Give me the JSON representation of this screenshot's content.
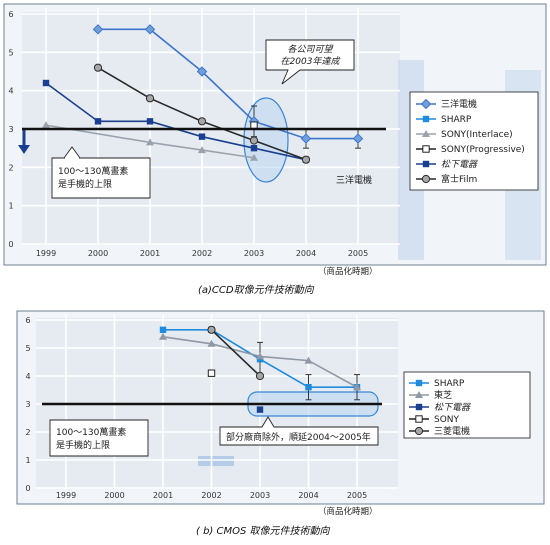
{
  "chart_data": [
    {
      "type": "line",
      "xlabel": "（商品化時期）",
      "caption": "(a)CCD取像元件技術動向",
      "x": [
        "1999",
        "2000",
        "2001",
        "2002",
        "2003",
        "2004",
        "2005"
      ],
      "yticks": [
        "0",
        "1",
        "2",
        "3",
        "4",
        "5",
        "6"
      ],
      "ylim": [
        0,
        6
      ],
      "threshold": 3,
      "threshold_note": "100～130萬畫素\n是手機的上限",
      "ellipse_note": "各公司可望\n在2003年達成",
      "side_label": "三洋電機",
      "legend_position": "right",
      "series": [
        {
          "name": "三洋電機",
          "color": "#3e74c9",
          "marker": "diamond",
          "points": [
            [
              2000,
              5.6
            ],
            [
              2001,
              5.6
            ],
            [
              2002,
              4.5
            ],
            [
              2003,
              3.2
            ],
            [
              2004,
              2.75
            ],
            [
              2005,
              2.75
            ]
          ],
          "errors": [
            [
              2003,
              0.4
            ],
            [
              2004,
              0.25
            ],
            [
              2005,
              0.25
            ]
          ]
        },
        {
          "name": "SHARP",
          "color": "#1e8bdc",
          "marker": "square",
          "points": []
        },
        {
          "name": "SONY(Interlace)",
          "color": "#9aa3ad",
          "marker": "triangle",
          "points": [
            [
              1999,
              3.1
            ],
            [
              2001,
              2.65
            ],
            [
              2002,
              2.45
            ],
            [
              2003,
              2.25
            ]
          ]
        },
        {
          "name": "SONY(Progressive)",
          "color": "#222222",
          "marker": "open-square",
          "points": [
            [
              2003,
              3.1
            ]
          ]
        },
        {
          "name": "松下電器",
          "color": "#1a3f8f",
          "marker": "square",
          "points": [
            [
              1999,
              4.2
            ],
            [
              2000,
              3.2
            ],
            [
              2001,
              3.2
            ],
            [
              2002,
              2.8
            ],
            [
              2003,
              2.5
            ],
            [
              2004,
              2.2
            ]
          ]
        },
        {
          "name": "富士Film",
          "color": "#2a2a2a",
          "marker": "circle",
          "points": [
            [
              2000,
              4.6
            ],
            [
              2001,
              3.8
            ],
            [
              2002,
              3.2
            ],
            [
              2003,
              2.7
            ],
            [
              2004,
              2.2
            ]
          ]
        }
      ]
    },
    {
      "type": "line",
      "xlabel": "（商品化時期）",
      "caption": "( b) CMOS 取像元件技術動向",
      "x": [
        "1999",
        "2000",
        "2001",
        "2002",
        "2003",
        "2004",
        "2005"
      ],
      "yticks": [
        "0",
        "1",
        "2",
        "3",
        "4",
        "5",
        "6"
      ],
      "ylim": [
        0,
        6
      ],
      "threshold": 3,
      "threshold_note": "100～130萬畫素\n是手機的上限",
      "box_note": "部分廠商除外，順延2004～2005年",
      "legend_position": "right",
      "series": [
        {
          "name": "SHARP",
          "color": "#1e8bdc",
          "marker": "square",
          "points": [
            [
              2001,
              5.65
            ],
            [
              2002,
              5.65
            ],
            [
              2003,
              4.6
            ],
            [
              2004,
              3.6
            ],
            [
              2005,
              3.6
            ]
          ],
          "errors": [
            [
              2003,
              0.6
            ],
            [
              2004,
              0.45
            ],
            [
              2005,
              0.45
            ]
          ]
        },
        {
          "name": "東芝",
          "color": "#8f98a4",
          "marker": "triangle",
          "points": [
            [
              2001,
              5.4
            ],
            [
              2002,
              5.15
            ],
            [
              2003,
              4.7
            ],
            [
              2004,
              4.55
            ],
            [
              2005,
              3.6
            ]
          ]
        },
        {
          "name": "松下電器",
          "color": "#1a3f8f",
          "marker": "square",
          "points": [
            [
              2003,
              2.8
            ]
          ]
        },
        {
          "name": "SONY",
          "color": "#222222",
          "marker": "open-square",
          "points": [
            [
              2002,
              4.1
            ]
          ]
        },
        {
          "name": "三菱電機",
          "color": "#2a2a2a",
          "marker": "circle",
          "points": [
            [
              2002,
              5.65
            ],
            [
              2003,
              4.0
            ]
          ]
        }
      ]
    }
  ]
}
